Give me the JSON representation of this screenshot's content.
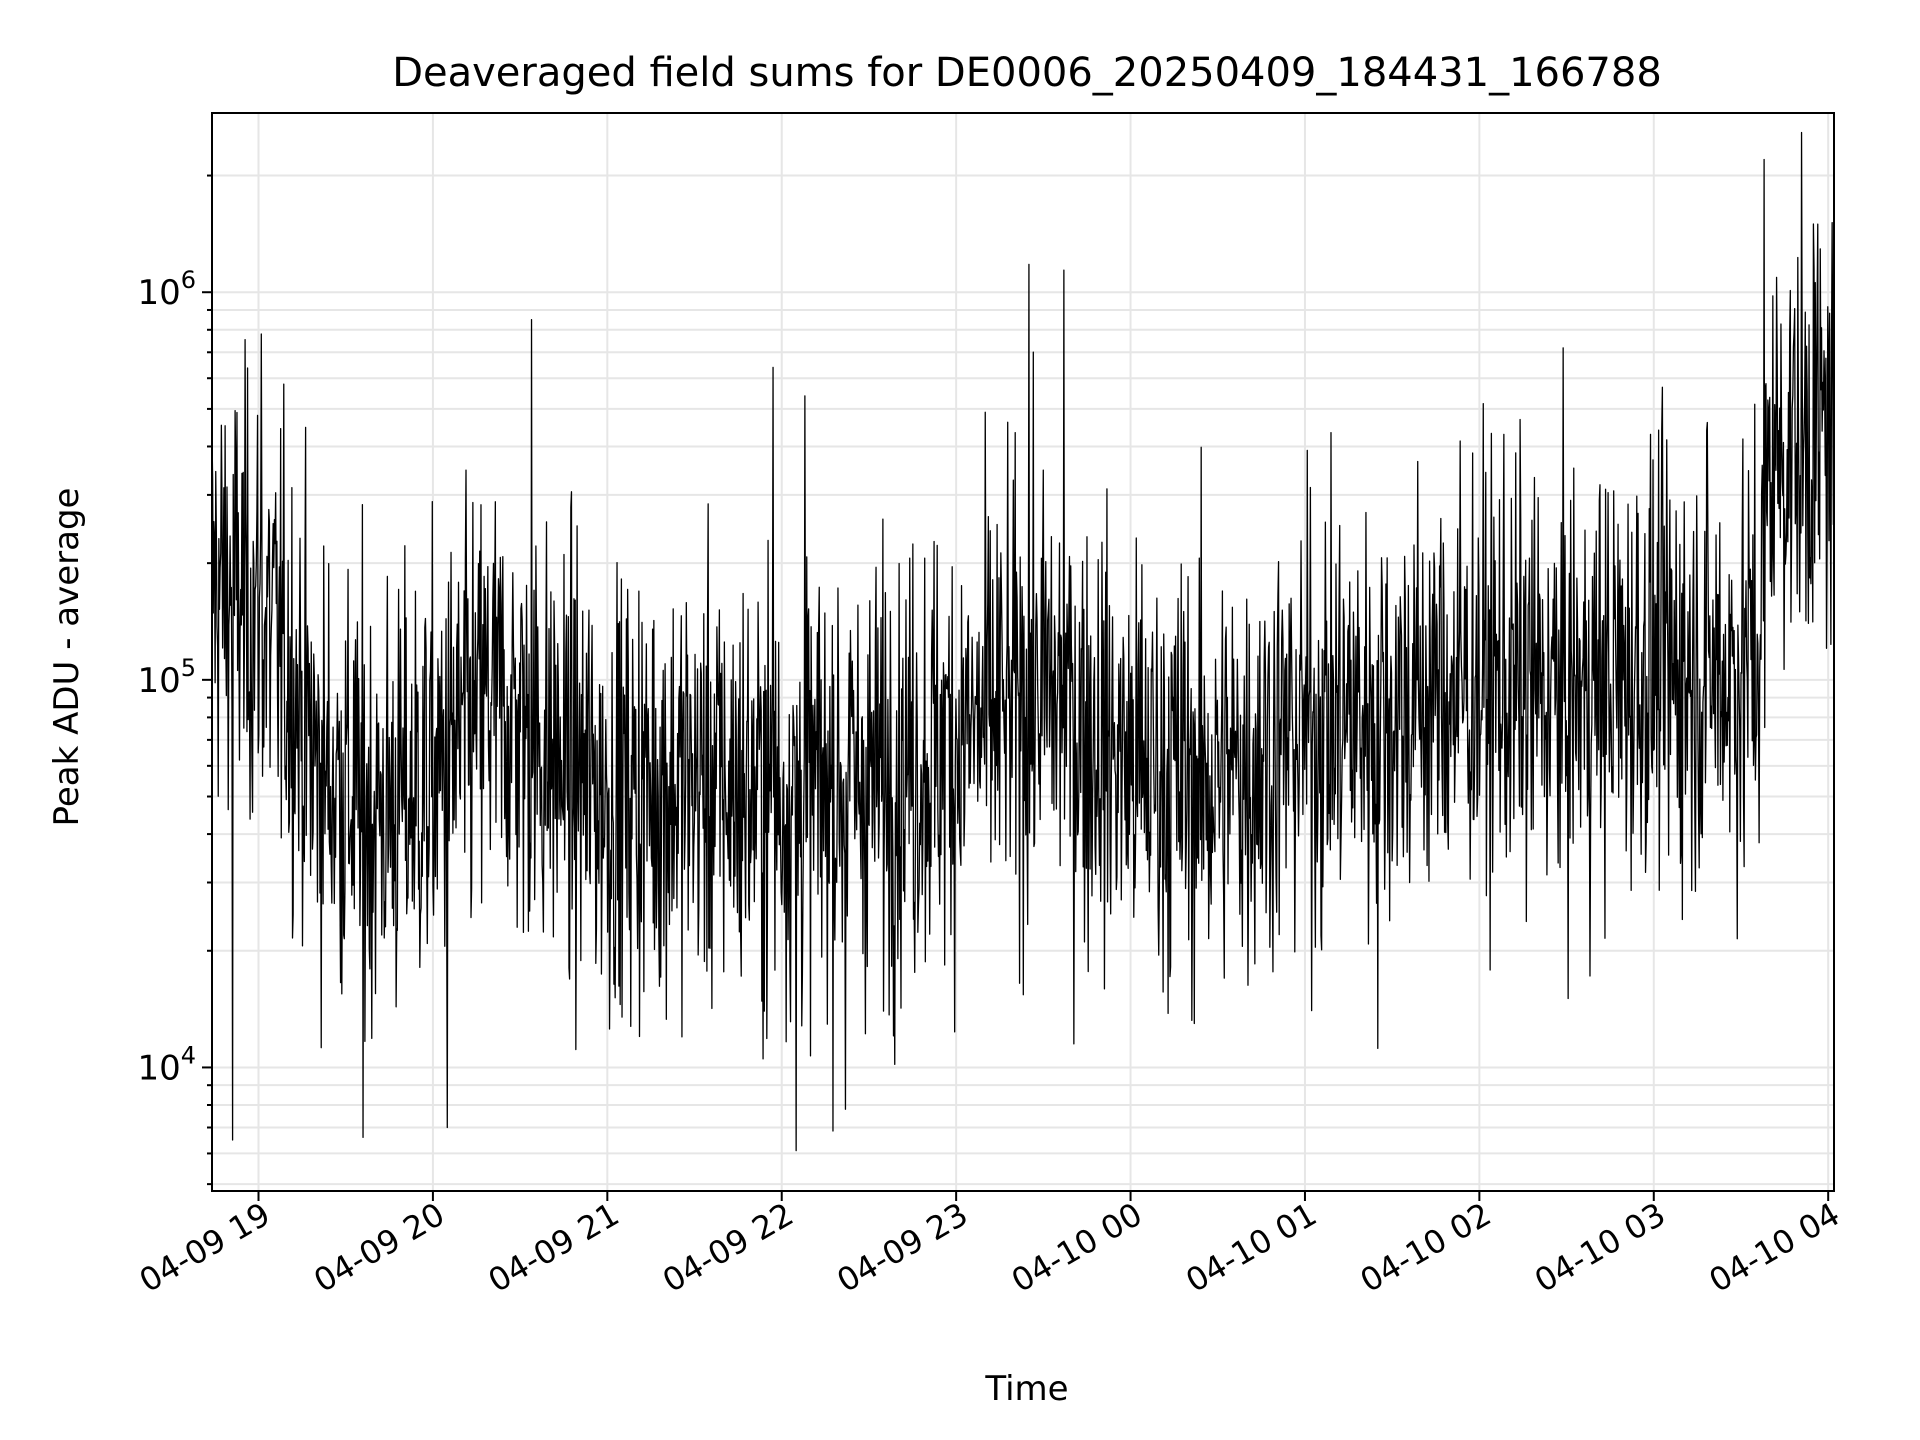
{
  "chart_data": {
    "type": "line",
    "title": "Deaveraged field sums for DE0006_20250409_184431_166788",
    "xlabel": "Time",
    "ylabel": "Peak ADU - average",
    "yscale": "log",
    "grid": true,
    "line_color": "#000000",
    "grid_color": "#e6e6e6",
    "xlim": [
      "2025-04-09 18:44",
      "2025-04-10 04:02"
    ],
    "ylim": [
      4800,
      2900000
    ],
    "xticks": [
      {
        "time": "2025-04-09 19:00",
        "label": "04-09 19"
      },
      {
        "time": "2025-04-09 20:00",
        "label": "04-09 20"
      },
      {
        "time": "2025-04-09 21:00",
        "label": "04-09 21"
      },
      {
        "time": "2025-04-09 22:00",
        "label": "04-09 22"
      },
      {
        "time": "2025-04-09 23:00",
        "label": "04-09 23"
      },
      {
        "time": "2025-04-10 00:00",
        "label": "04-10 00"
      },
      {
        "time": "2025-04-10 01:00",
        "label": "04-10 01"
      },
      {
        "time": "2025-04-10 02:00",
        "label": "04-10 02"
      },
      {
        "time": "2025-04-10 03:00",
        "label": "04-10 03"
      },
      {
        "time": "2025-04-10 04:00",
        "label": "04-10 04"
      }
    ],
    "yticks": [
      {
        "value": 10000,
        "base": "10",
        "exp": "4"
      },
      {
        "value": 100000,
        "base": "10",
        "exp": "5"
      },
      {
        "value": 1000000,
        "base": "10",
        "exp": "6"
      }
    ],
    "series": [
      {
        "x_start": "2025-04-09 18:44",
        "x_end": "2025-04-10 04:02",
        "trend": [
          {
            "time": "2025-04-09 18:44",
            "median": 180000
          },
          {
            "time": "2025-04-09 19:00",
            "median": 150000
          },
          {
            "time": "2025-04-09 19:10",
            "median": 110000
          },
          {
            "time": "2025-04-09 19:20",
            "median": 60000
          },
          {
            "time": "2025-04-09 19:40",
            "median": 45000
          },
          {
            "time": "2025-04-09 20:00",
            "median": 55000
          },
          {
            "time": "2025-04-09 20:20",
            "median": 90000
          },
          {
            "time": "2025-04-09 20:40",
            "median": 65000
          },
          {
            "time": "2025-04-09 21:00",
            "median": 50000
          },
          {
            "time": "2025-04-09 21:30",
            "median": 55000
          },
          {
            "time": "2025-04-09 22:00",
            "median": 50000
          },
          {
            "time": "2025-04-09 22:30",
            "median": 55000
          },
          {
            "time": "2025-04-09 23:00",
            "median": 70000
          },
          {
            "time": "2025-04-09 23:30",
            "median": 95000
          },
          {
            "time": "2025-04-10 00:00",
            "median": 60000
          },
          {
            "time": "2025-04-10 00:30",
            "median": 55000
          },
          {
            "time": "2025-04-10 01:00",
            "median": 75000
          },
          {
            "time": "2025-04-10 01:30",
            "median": 85000
          },
          {
            "time": "2025-04-10 02:00",
            "median": 100000
          },
          {
            "time": "2025-04-10 02:30",
            "median": 90000
          },
          {
            "time": "2025-04-10 03:00",
            "median": 110000
          },
          {
            "time": "2025-04-10 03:30",
            "median": 105000
          },
          {
            "time": "2025-04-10 03:36",
            "median": 120000
          },
          {
            "time": "2025-04-10 03:40",
            "median": 380000
          },
          {
            "time": "2025-04-10 04:02",
            "median": 450000
          }
        ],
        "notable_points": [
          {
            "time": "2025-04-10 03:38",
            "value": 2200000
          },
          {
            "time": "2025-04-10 03:55",
            "value": 1500000
          },
          {
            "time": "2025-04-09 23:25",
            "value": 1180000
          },
          {
            "time": "2025-04-09 23:37",
            "value": 1140000
          },
          {
            "time": "2025-04-09 19:01",
            "value": 780000
          },
          {
            "time": "2025-04-09 20:34",
            "value": 850000
          },
          {
            "time": "2025-04-09 21:57",
            "value": 640000
          },
          {
            "time": "2025-04-09 22:08",
            "value": 540000
          },
          {
            "time": "2025-04-09 18:51",
            "value": 6500
          },
          {
            "time": "2025-04-09 19:36",
            "value": 6600
          },
          {
            "time": "2025-04-09 20:05",
            "value": 7000
          },
          {
            "time": "2025-04-09 22:05",
            "value": 6100
          },
          {
            "time": "2025-04-09 22:22",
            "value": 7800
          },
          {
            "time": "2025-04-10 01:25",
            "value": 11200
          }
        ]
      }
    ]
  }
}
